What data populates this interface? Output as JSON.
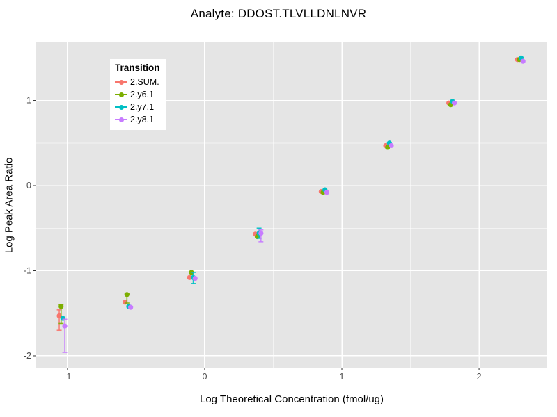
{
  "title": "Analyte: DDOST.TLVLLDNLNVR",
  "axes": {
    "x_label": "Log Theoretical Concentration (fmol/ug)",
    "y_label": "Log Peak Area Ratio",
    "x_tick_labels": [
      "-1",
      "0",
      "1",
      "2"
    ],
    "y_tick_labels": [
      "1",
      "0",
      "-1",
      "-2"
    ]
  },
  "legend": {
    "title": "Transition",
    "entries": [
      {
        "label": "2.SUM.",
        "color": "#F8766D"
      },
      {
        "label": "2.y6.1",
        "color": "#7CAE00"
      },
      {
        "label": "2.y7.1",
        "color": "#00BFC4"
      },
      {
        "label": "2.y8.1",
        "color": "#C77CFF"
      }
    ]
  },
  "colors": {
    "panel_bg": "#E5E5E5",
    "grid_major": "#FFFFFF",
    "grid_minor": "#FFFFFF",
    "tick_label": "#4D4D4D",
    "tick_mark": "#333333",
    "title_text": "#000000"
  },
  "chart_data": {
    "type": "scatter",
    "title": "Analyte: DDOST.TLVLLDNLNVR",
    "xlabel": "Log Theoretical Concentration (fmol/ug)",
    "ylabel": "Log Peak Area Ratio",
    "xlim": [
      -1.228,
      2.497
    ],
    "ylim": [
      -2.139,
      1.682
    ],
    "x_major_ticks": [
      -1,
      0,
      1,
      2
    ],
    "y_major_ticks": [
      1,
      0,
      -1,
      -2
    ],
    "x_minor_ticks": [
      -0.5,
      0.5,
      1.5
    ],
    "y_minor_ticks": [
      1.5,
      0.5,
      -0.5,
      -1.5
    ],
    "grid": true,
    "legend_position": "top-left-inside",
    "legend_title": "Transition",
    "x": [
      -1.04,
      -0.56,
      -0.09,
      0.39,
      0.87,
      1.34,
      1.8,
      2.3
    ],
    "series": [
      {
        "name": "2.SUM.",
        "color": "#F8766D",
        "values": [
          -1.53,
          -1.37,
          -1.08,
          -0.57,
          -0.07,
          0.47,
          0.97,
          1.48
        ],
        "error_lo": [
          -1.7,
          null,
          null,
          null,
          null,
          null,
          null,
          null
        ],
        "error_hi": [
          -1.46,
          null,
          null,
          null,
          null,
          null,
          null,
          null
        ]
      },
      {
        "name": "2.y6.1",
        "color": "#7CAE00",
        "values": [
          -1.42,
          -1.28,
          -1.02,
          -0.6,
          -0.08,
          0.45,
          0.95,
          1.48
        ],
        "error_lo": [
          -1.62,
          -1.38,
          null,
          null,
          null,
          null,
          null,
          null
        ],
        "error_hi": [
          -1.4,
          -1.27,
          null,
          null,
          null,
          null,
          null,
          null
        ]
      },
      {
        "name": "2.y7.1",
        "color": "#00BFC4",
        "values": [
          -1.56,
          -1.42,
          -1.08,
          -0.56,
          -0.05,
          0.5,
          0.99,
          1.5
        ],
        "error_lo": [
          null,
          null,
          -1.15,
          -0.62,
          null,
          null,
          null,
          null
        ],
        "error_hi": [
          null,
          null,
          -1.02,
          -0.5,
          null,
          null,
          null,
          null
        ]
      },
      {
        "name": "2.y8.1",
        "color": "#C77CFF",
        "values": [
          -1.65,
          -1.43,
          -1.09,
          -0.56,
          -0.08,
          0.47,
          0.97,
          1.46
        ],
        "error_lo": [
          -1.96,
          null,
          null,
          -0.66,
          null,
          null,
          null,
          null
        ],
        "error_hi": [
          -1.57,
          null,
          null,
          -0.52,
          null,
          null,
          null,
          null
        ]
      }
    ]
  }
}
